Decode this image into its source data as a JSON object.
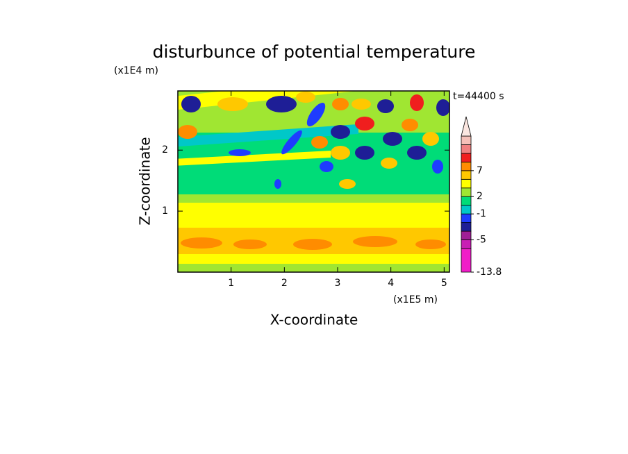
{
  "chart_data": {
    "type": "contour",
    "title": "disturbunce of potential temperature",
    "x_label": "X-coordinate",
    "x_unit": "(x1E5 m)",
    "y_label": "Z-coordinate",
    "y_unit": "(x1E4 m)",
    "time_label": "t=44400 s",
    "xlim": [
      0,
      5.1
    ],
    "xticks": [
      1,
      2,
      3,
      4,
      5
    ],
    "ylim": [
      0,
      2.97
    ],
    "yticks": [
      1,
      2
    ],
    "colorbar": {
      "levels": [
        -13.8,
        -7,
        -5,
        -4,
        -2,
        -1,
        0,
        2,
        4,
        5,
        7,
        9,
        11,
        13,
        15
      ],
      "colors": [
        "#f01ec8",
        "#c81eb4",
        "#a01e96",
        "#1e1e96",
        "#1e3cff",
        "#00c8c8",
        "#00dc78",
        "#a0e632",
        "#ffff00",
        "#ffc800",
        "#ff8c00",
        "#f01e1e",
        "#f08080",
        "#f5c0b8",
        "#fbe6e0"
      ],
      "ticks": [
        -13.8,
        -5,
        -1,
        2,
        7
      ]
    }
  }
}
